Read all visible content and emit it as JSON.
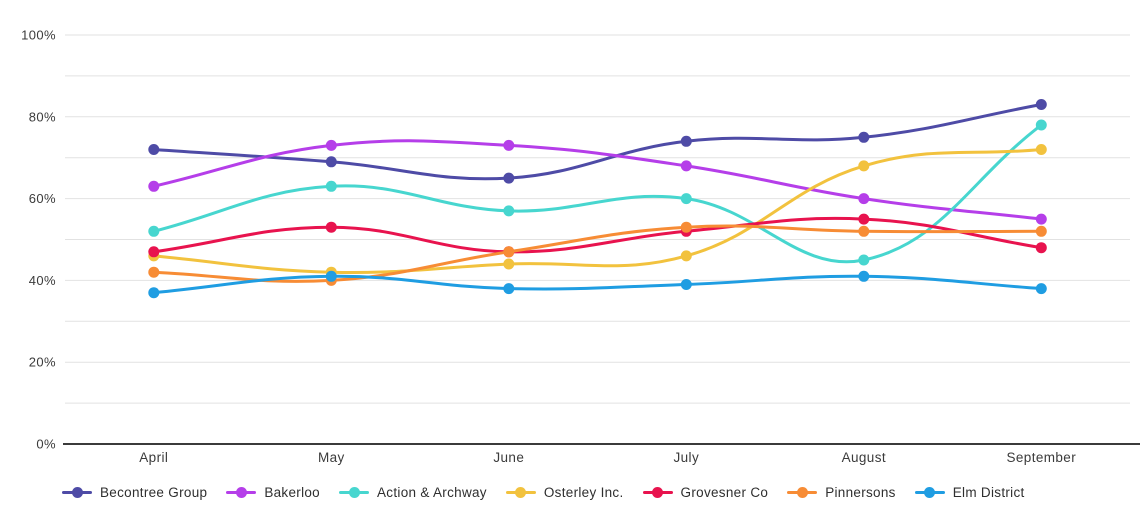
{
  "chart_data": {
    "type": "line",
    "title": "",
    "xlabel": "",
    "ylabel": "",
    "categories": [
      "April",
      "May",
      "June",
      "July",
      "August",
      "September"
    ],
    "series": [
      {
        "name": "Becontree Group",
        "color": "#4e4ba6",
        "values": [
          72,
          69,
          65,
          74,
          75,
          83
        ]
      },
      {
        "name": "Bakerloo",
        "color": "#b53ee9",
        "values": [
          63,
          73,
          73,
          68,
          60,
          55
        ]
      },
      {
        "name": "Action & Archway",
        "color": "#47d6cf",
        "values": [
          52,
          63,
          57,
          60,
          45,
          78
        ]
      },
      {
        "name": "Osterley Inc.",
        "color": "#f2c23e",
        "values": [
          46,
          42,
          44,
          46,
          68,
          72
        ]
      },
      {
        "name": "Grovesner Co",
        "color": "#e8134e",
        "values": [
          47,
          53,
          47,
          52,
          55,
          48
        ]
      },
      {
        "name": "Pinnersons",
        "color": "#f78c35",
        "values": [
          42,
          40,
          47,
          53,
          52,
          52
        ]
      },
      {
        "name": "Elm District",
        "color": "#1f9de2",
        "values": [
          37,
          41,
          38,
          39,
          41,
          38
        ]
      }
    ],
    "ylim": [
      0,
      100
    ],
    "y_tick_labels": [
      "0%",
      "20%",
      "40%",
      "60%",
      "80%",
      "100%"
    ],
    "y_label_step": 20,
    "grid_step": 10,
    "grid": true,
    "legend_position": "bottom-left",
    "style": {
      "grid_line_color": "#e2e2e2",
      "axis_line_color": "#1f1f1f",
      "tick_text_color": "#3b3b3b",
      "background_color": "#ffffff",
      "line_width": 3,
      "point_radius": 5.5,
      "line_tension": 0.4
    }
  }
}
